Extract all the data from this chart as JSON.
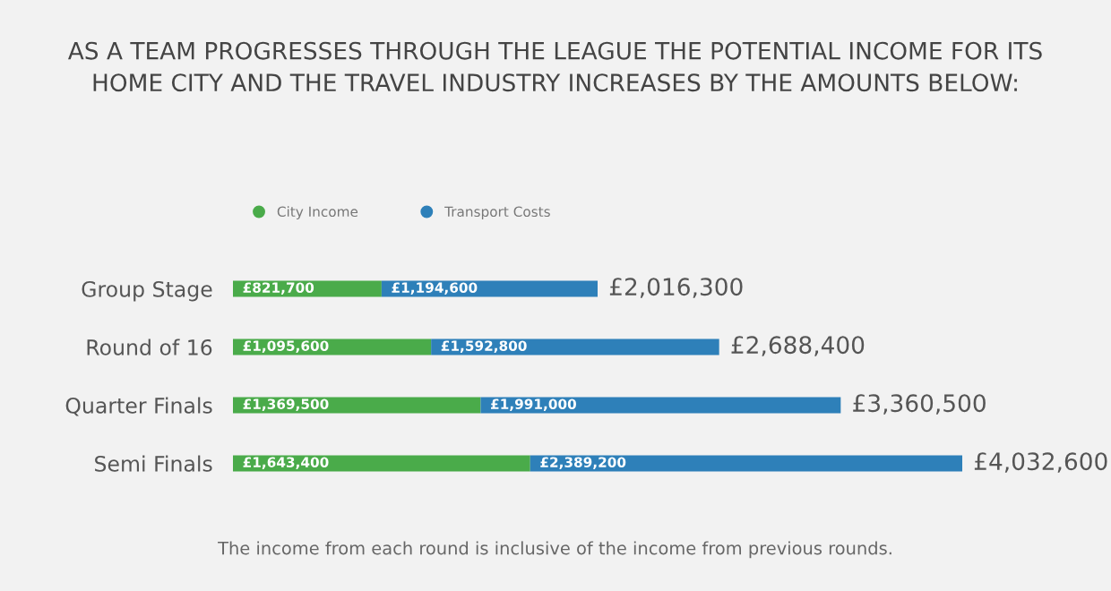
{
  "chart_data": {
    "type": "bar",
    "orientation": "horizontal",
    "stacked": true,
    "title": "AS A TEAM PROGRESSES THROUGH THE LEAGUE THE POTENTIAL INCOME FOR ITS\nHOME CITY AND THE TRAVEL INDUSTRY INCREASES BY THE AMOUNTS BELOW:",
    "categories": [
      "Group Stage",
      "Round of 16",
      "Quarter Finals",
      "Semi Finals"
    ],
    "series": [
      {
        "name": "City Income",
        "color": "#4aab4a",
        "values": [
          821700,
          1095600,
          1369500,
          1643400
        ],
        "value_labels": [
          "£821,700",
          "£1,095,600",
          "£1,369,500",
          "£1,643,400"
        ]
      },
      {
        "name": "Transport Costs",
        "color": "#2e80b9",
        "values": [
          1194600,
          1592800,
          1991000,
          2389200
        ],
        "value_labels": [
          "£1,194,600",
          "£1,592,800",
          "£1,991,000",
          "£2,389,200"
        ]
      }
    ],
    "totals": [
      "£2,016,300",
      "£2,688,400",
      "£3,360,500",
      "£4,032,600"
    ],
    "legend": "top left",
    "annotations": [
      "The income from each round is inclusive of the income from previous rounds."
    ]
  }
}
